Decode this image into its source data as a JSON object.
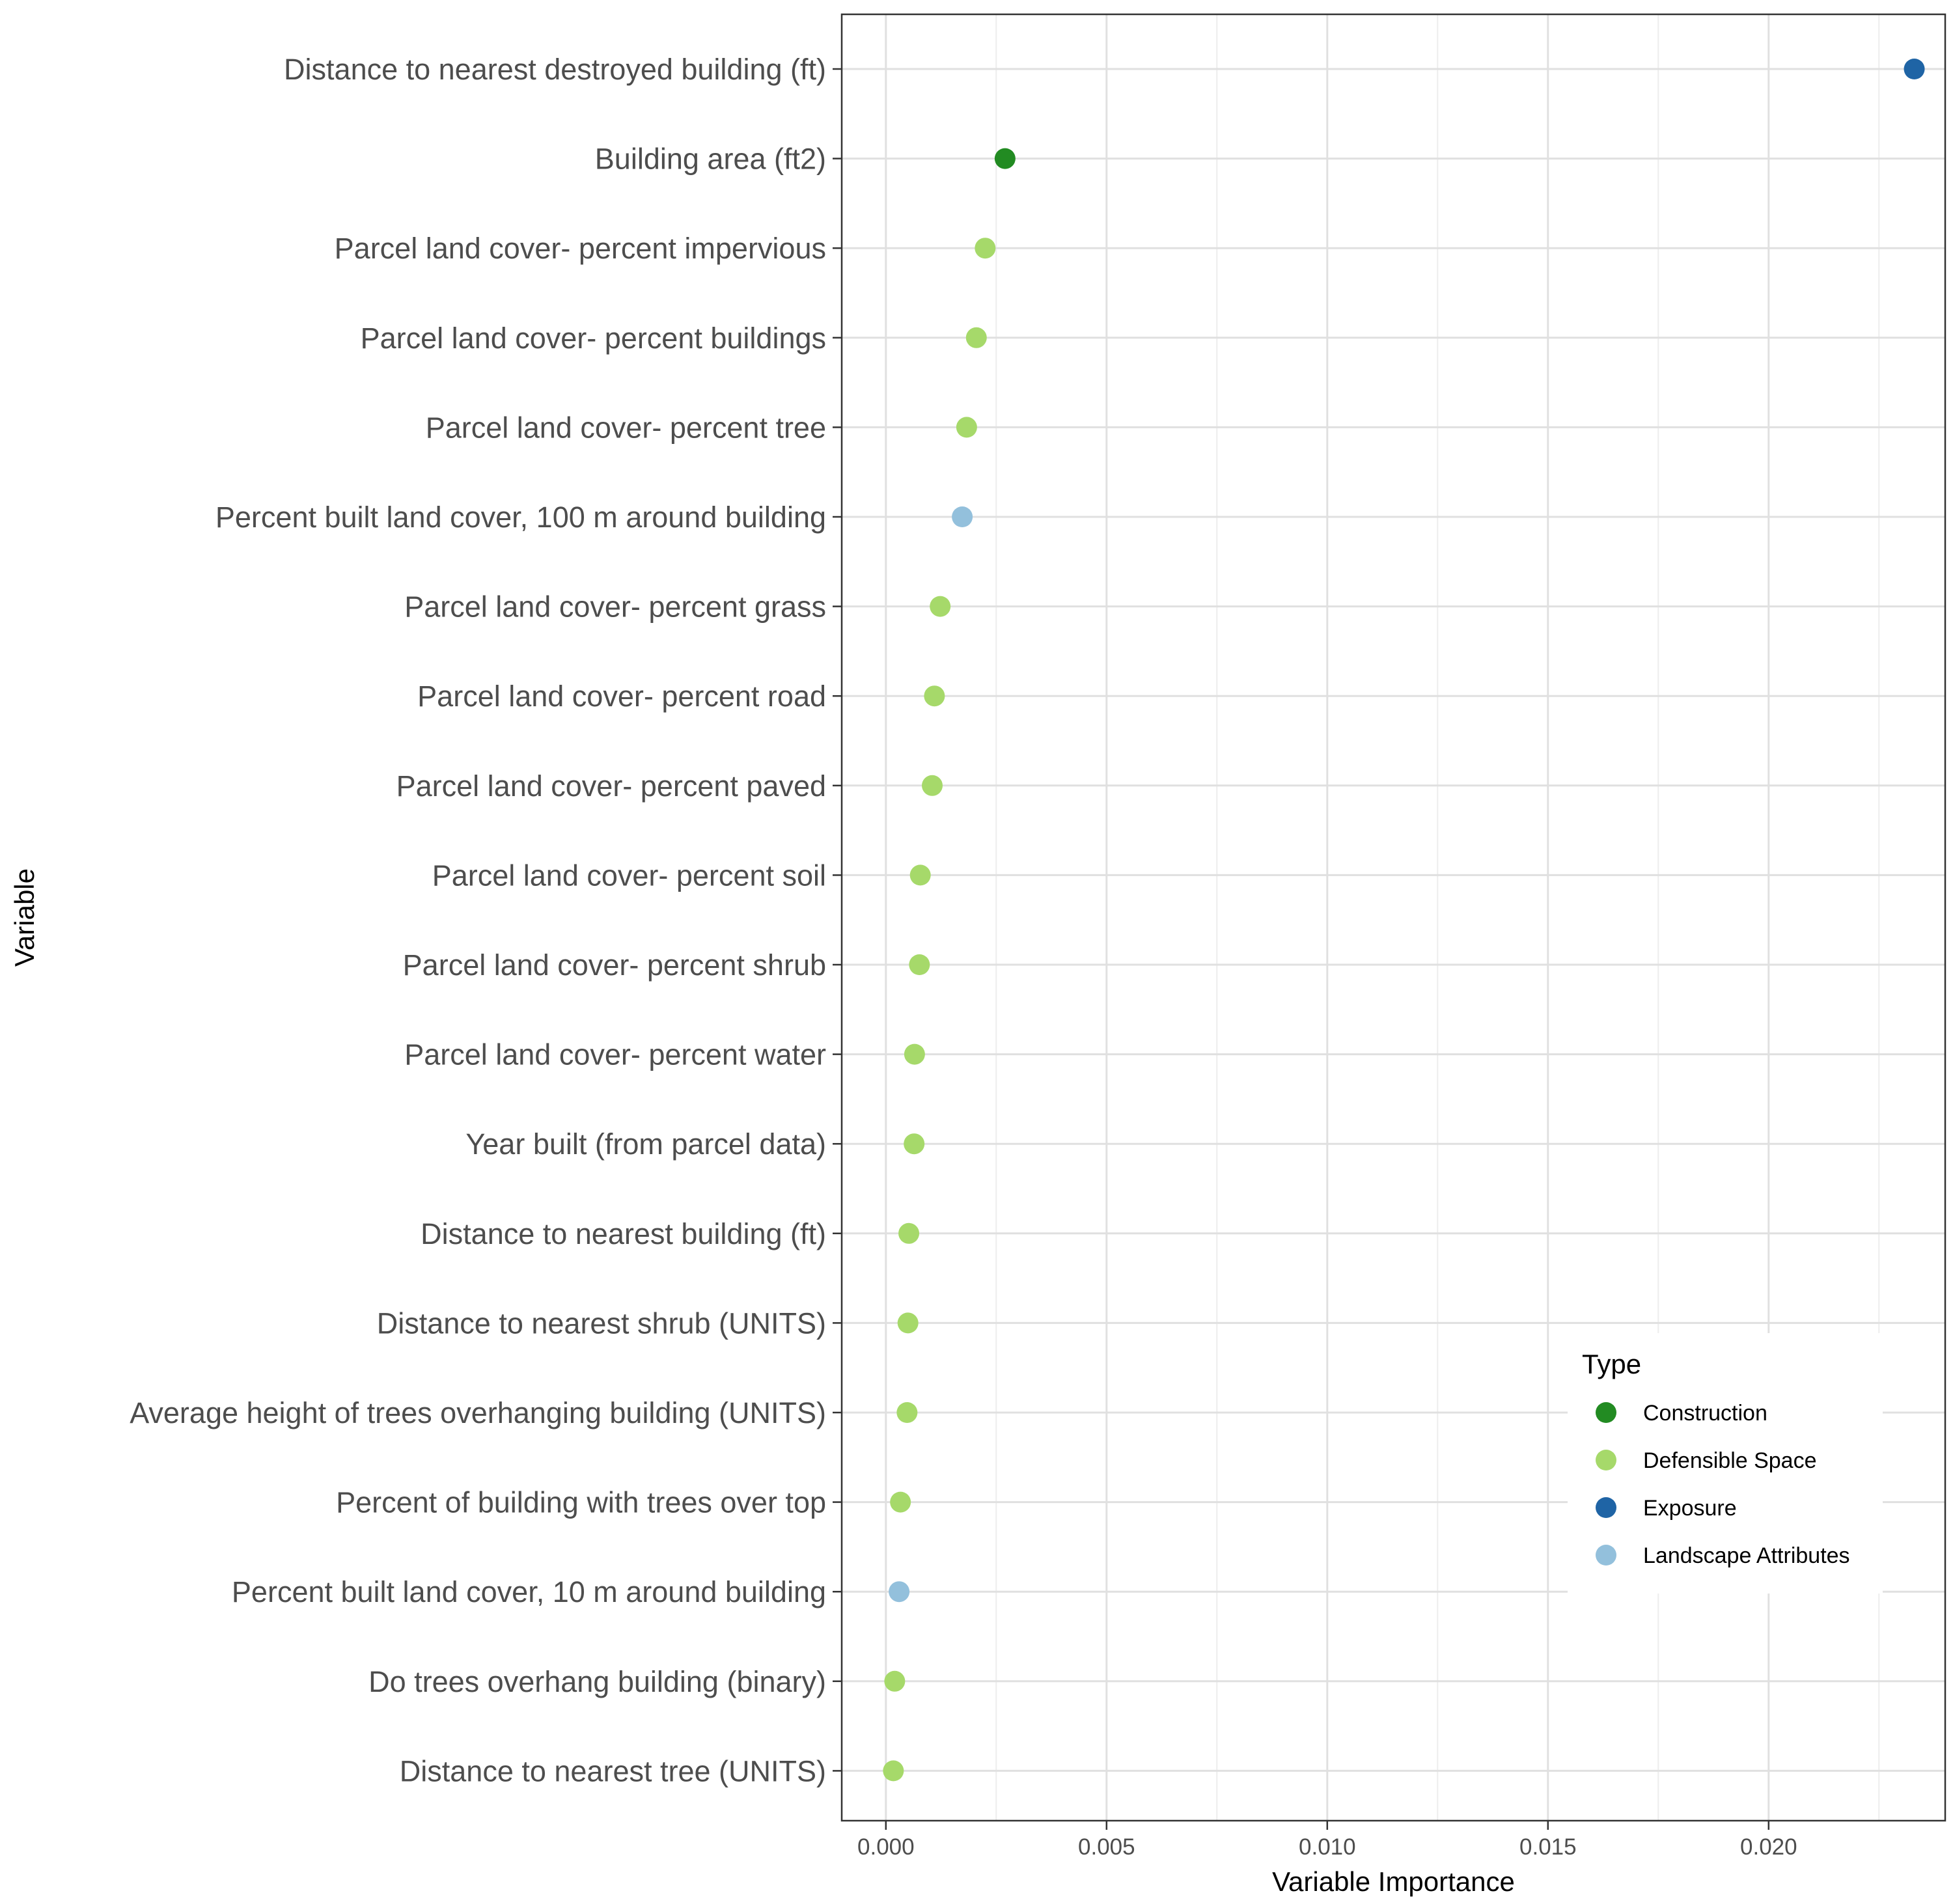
{
  "chart_data": {
    "type": "scatter",
    "title": "",
    "xlabel": "Variable Importance",
    "ylabel": "Variable",
    "xlim": [
      -0.001,
      0.024
    ],
    "x_ticks": [
      0.0,
      0.005,
      0.01,
      0.015,
      0.02
    ],
    "x_tick_labels": [
      "0.000",
      "0.005",
      "0.010",
      "0.015",
      "0.020"
    ],
    "grid": true,
    "legend": {
      "title": "Type",
      "position": "bottom-right inside",
      "entries": [
        {
          "name": "Construction",
          "color": "#228b22"
        },
        {
          "name": "Defensible Space",
          "color": "#a6d96a"
        },
        {
          "name": "Exposure",
          "color": "#1f64a5"
        },
        {
          "name": "Landscape Attributes",
          "color": "#93c0dc"
        }
      ]
    },
    "points": [
      {
        "variable": "Distance to nearest destroyed building (ft)",
        "importance": 0.0233,
        "type": "Exposure"
      },
      {
        "variable": "Building area (ft2)",
        "importance": 0.0027,
        "type": "Construction"
      },
      {
        "variable": "Parcel land cover- percent impervious",
        "importance": 0.00225,
        "type": "Defensible Space"
      },
      {
        "variable": "Parcel land cover- percent buildings",
        "importance": 0.00205,
        "type": "Defensible Space"
      },
      {
        "variable": "Parcel land cover- percent tree",
        "importance": 0.00183,
        "type": "Defensible Space"
      },
      {
        "variable": "Percent built land cover, 100 m around building",
        "importance": 0.00173,
        "type": "Landscape Attributes"
      },
      {
        "variable": "Parcel land cover- percent grass",
        "importance": 0.00123,
        "type": "Defensible Space"
      },
      {
        "variable": "Parcel land cover- percent road",
        "importance": 0.0011,
        "type": "Defensible Space"
      },
      {
        "variable": "Parcel land cover- percent paved",
        "importance": 0.00105,
        "type": "Defensible Space"
      },
      {
        "variable": "Parcel land cover- percent soil",
        "importance": 0.00078,
        "type": "Defensible Space"
      },
      {
        "variable": "Parcel land cover- percent shrub",
        "importance": 0.00076,
        "type": "Defensible Space"
      },
      {
        "variable": "Parcel land cover- percent water",
        "importance": 0.00065,
        "type": "Defensible Space"
      },
      {
        "variable": "Year built (from parcel data)",
        "importance": 0.00064,
        "type": "Defensible Space"
      },
      {
        "variable": "Distance to nearest building (ft)",
        "importance": 0.00052,
        "type": "Defensible Space"
      },
      {
        "variable": "Distance to nearest shrub (UNITS)",
        "importance": 0.0005,
        "type": "Defensible Space"
      },
      {
        "variable": "Average height of trees overhanging building (UNITS)",
        "importance": 0.00048,
        "type": "Defensible Space"
      },
      {
        "variable": "Percent of building with trees over top",
        "importance": 0.00033,
        "type": "Defensible Space"
      },
      {
        "variable": "Percent built land cover, 10 m around building",
        "importance": 0.0003,
        "type": "Landscape Attributes"
      },
      {
        "variable": "Do trees overhang building (binary)",
        "importance": 0.0002,
        "type": "Defensible Space"
      },
      {
        "variable": "Distance to nearest tree (UNITS)",
        "importance": 0.00017,
        "type": "Defensible Space"
      }
    ]
  }
}
